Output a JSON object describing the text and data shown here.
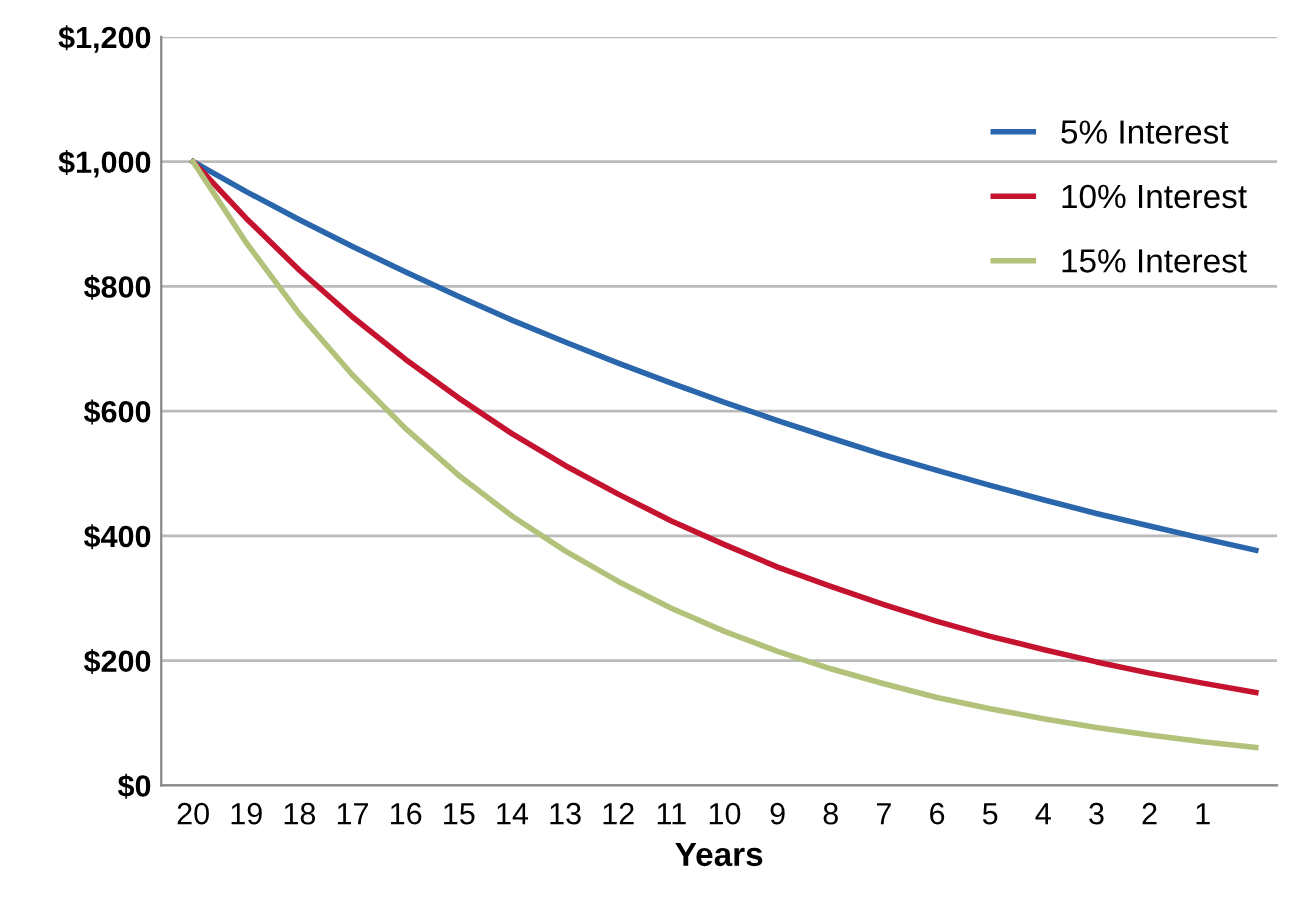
{
  "chart_data": {
    "type": "line",
    "xlabel": "Years",
    "categories": [
      "20",
      "19",
      "18",
      "17",
      "16",
      "15",
      "14",
      "13",
      "12",
      "11",
      "10",
      "9",
      "8",
      "7",
      "6",
      "5",
      "4",
      "3",
      "2",
      "1",
      null
    ],
    "series": [
      {
        "name": "5% Interest",
        "color": "#2a66ac",
        "values": [
          1000,
          952,
          907,
          864,
          823,
          784,
          746,
          711,
          677,
          645,
          614,
          585,
          557,
          530,
          505,
          481,
          458,
          436,
          416,
          396,
          377
        ]
      },
      {
        "name": "10% Interest",
        "color": "#c4122f",
        "values": [
          1000,
          909,
          826,
          751,
          683,
          621,
          564,
          513,
          467,
          424,
          386,
          350,
          319,
          290,
          263,
          239,
          218,
          198,
          180,
          164,
          149
        ]
      },
      {
        "name": "15% Interest",
        "color": "#b3c27a",
        "values": [
          1000,
          870,
          756,
          658,
          572,
          497,
          432,
          376,
          327,
          284,
          247,
          215,
          187,
          163,
          141,
          123,
          107,
          93,
          81,
          70,
          61
        ]
      }
    ],
    "ylim": [
      0,
      1200
    ],
    "yticks": [
      {
        "value": 0,
        "label": "$0"
      },
      {
        "value": 200,
        "label": "$200"
      },
      {
        "value": 400,
        "label": "$400"
      },
      {
        "value": 600,
        "label": "$600"
      },
      {
        "value": 800,
        "label": "$800"
      },
      {
        "value": 1000,
        "label": "$1,000"
      },
      {
        "value": 1200,
        "label": "$1,200"
      }
    ],
    "grid": "y",
    "legend": "top right",
    "marker": "none",
    "line_style": "solid"
  }
}
